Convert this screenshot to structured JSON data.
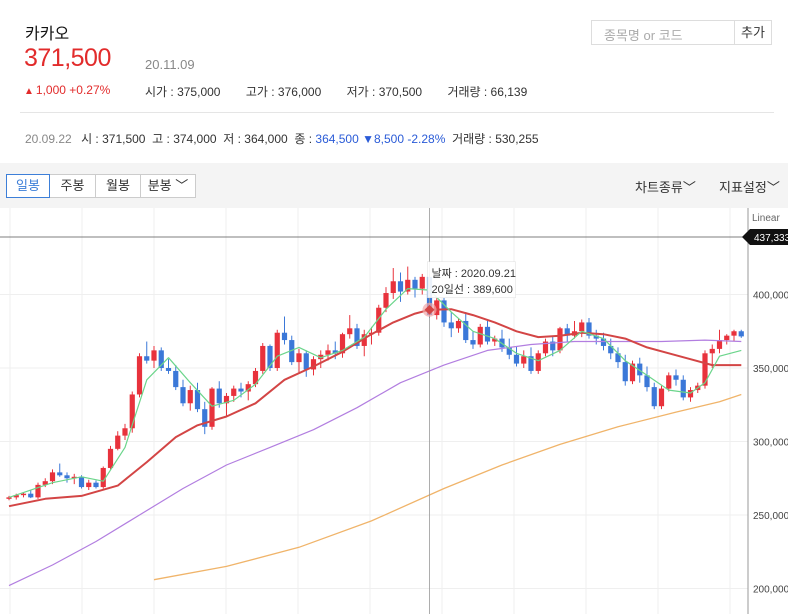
{
  "stock": {
    "name": "카카오",
    "price": "371,500",
    "date": "20.11.09",
    "change": "1,000",
    "change_pct": "+0.27%",
    "change_arrow": "▲",
    "stats": {
      "open": "시가 : 375,000",
      "high": "고가 : 376,000",
      "low": "저가 : 370,500",
      "volume": "거래량 : 66,139"
    }
  },
  "search": {
    "placeholder": "종목명 or 코드",
    "add_label": "추가"
  },
  "prev_day": {
    "date": "20.09.22",
    "open": "시 : 371,500",
    "high": "고 : 374,000",
    "low": "저 : 364,000",
    "close_label": "종 : ",
    "close_value": "364,500",
    "change": "▼8,500",
    "change_pct": "-2.28%",
    "volume": "거래량 : 530,255"
  },
  "tabs": [
    {
      "label": "일봉"
    },
    {
      "label": "주봉"
    },
    {
      "label": "월봉"
    },
    {
      "label": "분봉 ﹀"
    }
  ],
  "menu": {
    "chart_type": "차트종류﹀",
    "indicator": "지표설정﹀"
  },
  "colors": {
    "up": "#e8323c",
    "down": "#3b78d8",
    "ma5": "#6bd58b",
    "ma20": "#d34545",
    "ma60": "#b27ee0",
    "ma120": "#f0b46a"
  },
  "chart_data": {
    "type": "candlestick",
    "scale_label": "Linear",
    "y_axis": {
      "ticks": [
        200000,
        250000,
        300000,
        350000,
        400000
      ],
      "tick_labels": [
        "200,000",
        "250,000",
        "300,000",
        "350,000",
        "400,000"
      ]
    },
    "current_price_label": "437,333",
    "current_price_value": 437333,
    "tooltip": {
      "date": "날짜 : 2020.09.21",
      "ma20": "20일선 : 389,600",
      "date_index": 58,
      "value": 389600
    },
    "candles": [
      [
        261000,
        263000,
        260000,
        262000
      ],
      [
        262000,
        264500,
        260500,
        263500
      ],
      [
        263500,
        265500,
        262000,
        264500
      ],
      [
        264500,
        267000,
        261500,
        262000
      ],
      [
        262000,
        272000,
        261000,
        270500
      ],
      [
        270500,
        275000,
        269000,
        273000
      ],
      [
        273000,
        281000,
        271000,
        279000
      ],
      [
        279000,
        285000,
        276000,
        277000
      ],
      [
        277000,
        279000,
        272000,
        275000
      ],
      [
        275000,
        278000,
        271000,
        276000
      ],
      [
        276000,
        277000,
        268000,
        269000
      ],
      [
        269000,
        274000,
        267000,
        272000
      ],
      [
        272000,
        273500,
        268000,
        269000
      ],
      [
        269000,
        283000,
        268000,
        282000
      ],
      [
        282000,
        297000,
        281000,
        295000
      ],
      [
        295000,
        307000,
        294000,
        304000
      ],
      [
        304000,
        312000,
        301000,
        309000
      ],
      [
        309000,
        334000,
        306000,
        332000
      ],
      [
        332000,
        360000,
        330000,
        358000
      ],
      [
        358000,
        368000,
        353000,
        355000
      ],
      [
        355000,
        365000,
        350000,
        362000
      ],
      [
        362000,
        364000,
        348000,
        350000
      ],
      [
        350000,
        356000,
        346000,
        348000
      ],
      [
        348000,
        352000,
        335000,
        337000
      ],
      [
        337000,
        342000,
        324000,
        326000
      ],
      [
        326000,
        338000,
        321000,
        335000
      ],
      [
        335000,
        340000,
        320000,
        322000
      ],
      [
        322000,
        327000,
        305000,
        310000
      ],
      [
        310000,
        337000,
        308000,
        336000
      ],
      [
        336000,
        341000,
        323000,
        326000
      ],
      [
        326000,
        333000,
        317000,
        331000
      ],
      [
        331000,
        338000,
        327000,
        336000
      ],
      [
        336000,
        340000,
        330000,
        334000
      ],
      [
        334000,
        341000,
        328000,
        339000
      ],
      [
        339000,
        350000,
        337000,
        348000
      ],
      [
        348000,
        367000,
        346000,
        365000
      ],
      [
        365000,
        366000,
        348000,
        350000
      ],
      [
        350000,
        376000,
        348000,
        374000
      ],
      [
        374000,
        385000,
        366000,
        369000
      ],
      [
        369000,
        372000,
        352000,
        354000
      ],
      [
        354000,
        363000,
        346000,
        360000
      ],
      [
        360000,
        362000,
        344000,
        349000
      ],
      [
        349000,
        358000,
        345000,
        356000
      ],
      [
        356000,
        362000,
        350000,
        359000
      ],
      [
        359000,
        366000,
        355000,
        362000
      ],
      [
        362000,
        368000,
        356000,
        360000
      ],
      [
        360000,
        374000,
        357000,
        373000
      ],
      [
        373000,
        386000,
        370000,
        377000
      ],
      [
        377000,
        380000,
        363000,
        365000
      ],
      [
        365000,
        376000,
        358000,
        373000
      ],
      [
        373000,
        378000,
        366000,
        374000
      ],
      [
        374000,
        393000,
        372000,
        391000
      ],
      [
        391000,
        405000,
        388000,
        401000
      ],
      [
        401000,
        418000,
        397000,
        409000
      ],
      [
        409000,
        415000,
        395000,
        402000
      ],
      [
        402000,
        419000,
        400000,
        410000
      ],
      [
        410000,
        412000,
        398000,
        404000
      ],
      [
        404000,
        414000,
        400000,
        412000
      ],
      [
        412000,
        414000,
        384000,
        386000
      ],
      [
        386000,
        398000,
        383000,
        396000
      ],
      [
        396000,
        398000,
        378000,
        381000
      ],
      [
        381000,
        388000,
        371000,
        377000
      ],
      [
        377000,
        384000,
        374000,
        382000
      ],
      [
        382000,
        388000,
        367000,
        369000
      ],
      [
        369000,
        375000,
        363000,
        366000
      ],
      [
        366000,
        380000,
        364000,
        378000
      ],
      [
        378000,
        382000,
        366000,
        368000
      ],
      [
        368000,
        372000,
        365000,
        370000
      ],
      [
        370000,
        376000,
        361000,
        364000
      ],
      [
        364000,
        370000,
        356000,
        359000
      ],
      [
        359000,
        365000,
        351000,
        353000
      ],
      [
        353000,
        362000,
        350000,
        358000
      ],
      [
        358000,
        364000,
        346000,
        348000
      ],
      [
        348000,
        362000,
        346000,
        360000
      ],
      [
        360000,
        370000,
        358000,
        368000
      ],
      [
        368000,
        372000,
        358000,
        362000
      ],
      [
        362000,
        378000,
        360000,
        377000
      ],
      [
        377000,
        380000,
        368000,
        372000
      ],
      [
        372000,
        382000,
        370000,
        375000
      ],
      [
        375000,
        383000,
        371000,
        381000
      ],
      [
        381000,
        384000,
        370000,
        372000
      ],
      [
        372000,
        376000,
        366000,
        370000
      ],
      [
        370000,
        374000,
        362000,
        365000
      ],
      [
        365000,
        370000,
        356000,
        360000
      ],
      [
        360000,
        364000,
        350000,
        354000
      ],
      [
        354000,
        359000,
        338000,
        341000
      ],
      [
        341000,
        355000,
        339000,
        353000
      ],
      [
        353000,
        357000,
        340000,
        345000
      ],
      [
        345000,
        351000,
        334000,
        337000
      ],
      [
        337000,
        340000,
        322000,
        324000
      ],
      [
        324000,
        338000,
        322000,
        336000
      ],
      [
        336000,
        347000,
        334000,
        345000
      ],
      [
        345000,
        349000,
        338000,
        342000
      ],
      [
        342000,
        345000,
        328000,
        330000
      ],
      [
        330000,
        337000,
        327000,
        335000
      ],
      [
        335000,
        340000,
        333000,
        338000
      ],
      [
        338000,
        362000,
        336000,
        360000
      ],
      [
        360000,
        366000,
        350000,
        363000
      ],
      [
        363000,
        376000,
        360000,
        369000
      ],
      [
        369000,
        373000,
        366000,
        372000
      ],
      [
        372000,
        376000,
        368000,
        375000
      ],
      [
        375000,
        376000,
        370500,
        371500
      ]
    ],
    "ma5": [
      [
        0,
        262000
      ],
      [
        6,
        272000
      ],
      [
        10,
        276000
      ],
      [
        13,
        273000
      ],
      [
        16,
        296000
      ],
      [
        19,
        342000
      ],
      [
        22,
        357000
      ],
      [
        25,
        340000
      ],
      [
        28,
        324000
      ],
      [
        31,
        328000
      ],
      [
        34,
        339000
      ],
      [
        37,
        358000
      ],
      [
        40,
        364000
      ],
      [
        43,
        357000
      ],
      [
        46,
        362000
      ],
      [
        49,
        371000
      ],
      [
        52,
        390000
      ],
      [
        55,
        404000
      ],
      [
        58,
        403000
      ],
      [
        61,
        388000
      ],
      [
        64,
        375000
      ],
      [
        67,
        370000
      ],
      [
        70,
        360000
      ],
      [
        73,
        355000
      ],
      [
        76,
        362000
      ],
      [
        79,
        375000
      ],
      [
        82,
        370000
      ],
      [
        85,
        355000
      ],
      [
        88,
        345000
      ],
      [
        91,
        335000
      ],
      [
        94,
        333000
      ],
      [
        96,
        340000
      ],
      [
        98,
        358000
      ],
      [
        101,
        362000
      ]
    ],
    "ma20": [
      [
        0,
        256000
      ],
      [
        5,
        261000
      ],
      [
        10,
        263000
      ],
      [
        15,
        270000
      ],
      [
        19,
        286000
      ],
      [
        23,
        303000
      ],
      [
        26,
        311000
      ],
      [
        30,
        317000
      ],
      [
        34,
        326000
      ],
      [
        38,
        342000
      ],
      [
        42,
        351000
      ],
      [
        46,
        361000
      ],
      [
        50,
        373000
      ],
      [
        53,
        381000
      ],
      [
        56,
        387000
      ],
      [
        58,
        389600
      ],
      [
        61,
        390000
      ],
      [
        64,
        386000
      ],
      [
        67,
        381000
      ],
      [
        70,
        375000
      ],
      [
        73,
        371000
      ],
      [
        76,
        372000
      ],
      [
        79,
        374000
      ],
      [
        82,
        373000
      ],
      [
        85,
        370000
      ],
      [
        88,
        364000
      ],
      [
        91,
        360000
      ],
      [
        94,
        356000
      ],
      [
        97,
        352000
      ],
      [
        99,
        352000
      ],
      [
        101,
        352000
      ]
    ],
    "ma60": [
      [
        0,
        202000
      ],
      [
        6,
        216000
      ],
      [
        12,
        232000
      ],
      [
        18,
        250000
      ],
      [
        24,
        268000
      ],
      [
        30,
        284000
      ],
      [
        36,
        296000
      ],
      [
        42,
        308000
      ],
      [
        48,
        323000
      ],
      [
        54,
        340000
      ],
      [
        60,
        352000
      ],
      [
        66,
        362000
      ],
      [
        72,
        366000
      ],
      [
        78,
        368000
      ],
      [
        84,
        368000
      ],
      [
        90,
        368000
      ],
      [
        96,
        369000
      ],
      [
        101,
        368000
      ]
    ],
    "ma120": [
      [
        20,
        206000
      ],
      [
        30,
        215000
      ],
      [
        40,
        228000
      ],
      [
        50,
        246000
      ],
      [
        60,
        268000
      ],
      [
        68,
        284000
      ],
      [
        76,
        298000
      ],
      [
        84,
        310000
      ],
      [
        92,
        320000
      ],
      [
        98,
        327000
      ],
      [
        101,
        332000
      ]
    ]
  }
}
